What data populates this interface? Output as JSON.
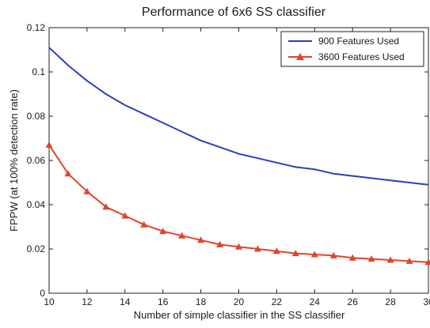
{
  "chart_data": {
    "type": "line",
    "title": "Performance of 6x6 SS classifier",
    "xlabel": "Number of simple classifier in the SS classifier",
    "ylabel": "FPPW (at 100% detection rate)",
    "xlim": [
      10,
      30
    ],
    "ylim": [
      0,
      0.12
    ],
    "xticks": [
      "10",
      "12",
      "14",
      "16",
      "18",
      "20",
      "22",
      "24",
      "26",
      "28",
      "30"
    ],
    "yticks": [
      "0",
      "0.02",
      "0.04",
      "0.06",
      "0.08",
      "0.1",
      "0.12"
    ],
    "grid": false,
    "legend_position": "top-right",
    "x": [
      10,
      11,
      12,
      13,
      14,
      15,
      16,
      17,
      18,
      19,
      20,
      21,
      22,
      23,
      24,
      25,
      26,
      27,
      28,
      29,
      30
    ],
    "series": [
      {
        "name": "900 Features Used",
        "color": "#2b3fbf",
        "marker": "none",
        "values": [
          0.111,
          0.103,
          0.096,
          0.09,
          0.085,
          0.081,
          0.077,
          0.073,
          0.069,
          0.066,
          0.063,
          0.061,
          0.059,
          0.057,
          0.056,
          0.054,
          0.053,
          0.052,
          0.051,
          0.05,
          0.049
        ]
      },
      {
        "name": "3600 Features Used",
        "color": "#e0442c",
        "marker": "filled-triangle",
        "values": [
          0.067,
          0.054,
          0.046,
          0.039,
          0.035,
          0.031,
          0.028,
          0.026,
          0.024,
          0.022,
          0.021,
          0.02,
          0.019,
          0.018,
          0.0175,
          0.017,
          0.016,
          0.0155,
          0.015,
          0.0145,
          0.014
        ]
      }
    ]
  }
}
